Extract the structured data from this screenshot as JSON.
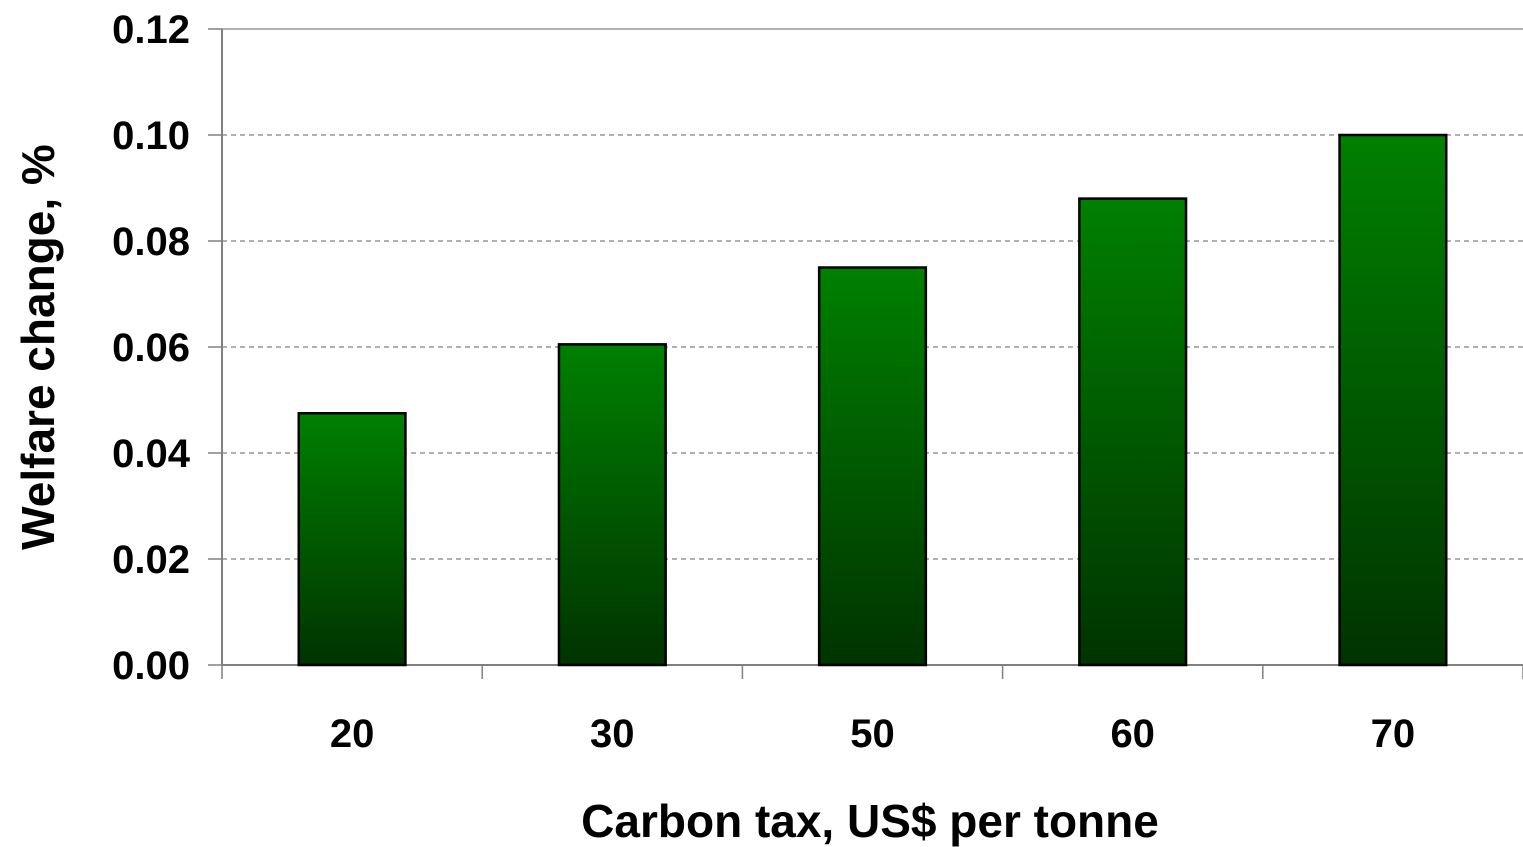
{
  "chart_data": {
    "type": "bar",
    "categories": [
      "20",
      "30",
      "50",
      "60",
      "70"
    ],
    "values": [
      0.0475,
      0.0605,
      0.075,
      0.088,
      0.1
    ],
    "title": "",
    "xlabel": "Carbon tax, US$ per tonne",
    "ylabel": "Welfare change, %",
    "ylim": [
      0,
      0.12
    ],
    "yticks": [
      "0.00",
      "0.02",
      "0.04",
      "0.06",
      "0.08",
      "0.10",
      "0.12"
    ],
    "grid": "horizontal dashed",
    "legend": "none",
    "colors": {
      "bar_top": "#008000",
      "bar_bottom": "#003300",
      "bar_border": "#000000",
      "grid": "#808080",
      "axis": "#808080"
    }
  }
}
